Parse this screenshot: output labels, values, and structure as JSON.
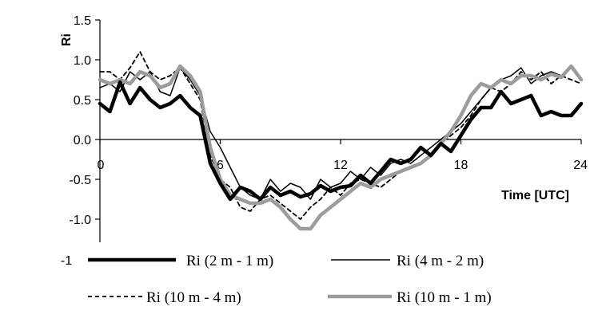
{
  "chart_data": {
    "type": "line",
    "xlabel": "Time [UTC]",
    "ylabel": "Ri",
    "xlim": [
      0,
      24
    ],
    "ylim": [
      -1.25,
      1.5
    ],
    "x_ticks": [
      "0",
      "6",
      "12",
      "18",
      "24"
    ],
    "y_ticks": [
      "1.5",
      "1.0",
      "0.5",
      "0.0",
      "-0.5",
      "-1.0"
    ],
    "stray_label": "-1",
    "grid": false,
    "legend_position": "bottom",
    "series": [
      {
        "name": "Ri (2 m - 1 m)",
        "color": "#000000",
        "style": "thick-solid",
        "x": [
          0,
          0.5,
          1,
          1.5,
          2,
          2.5,
          3,
          3.5,
          4,
          4.5,
          5,
          5.5,
          6,
          6.5,
          7,
          7.5,
          8,
          8.5,
          9,
          9.5,
          10,
          10.5,
          11,
          11.5,
          12,
          12.5,
          13,
          13.5,
          14,
          14.5,
          15,
          15.5,
          16,
          16.5,
          17,
          17.5,
          18,
          18.5,
          19,
          19.5,
          20,
          20.5,
          21,
          21.5,
          22,
          22.5,
          23,
          23.5,
          24
        ],
        "values": [
          0.45,
          0.35,
          0.72,
          0.45,
          0.65,
          0.5,
          0.4,
          0.45,
          0.55,
          0.4,
          0.3,
          -0.3,
          -0.55,
          -0.75,
          -0.6,
          -0.65,
          -0.75,
          -0.6,
          -0.7,
          -0.65,
          -0.72,
          -0.68,
          -0.58,
          -0.65,
          -0.6,
          -0.58,
          -0.45,
          -0.55,
          -0.4,
          -0.25,
          -0.3,
          -0.25,
          -0.1,
          -0.2,
          -0.05,
          -0.15,
          0.05,
          0.25,
          0.4,
          0.4,
          0.6,
          0.45,
          0.5,
          0.55,
          0.3,
          0.35,
          0.3,
          0.3,
          0.45
        ]
      },
      {
        "name": "Ri (4 m - 2 m)",
        "color": "#000000",
        "style": "thin-solid",
        "x": [
          0,
          0.5,
          1,
          1.5,
          2,
          2.5,
          3,
          3.5,
          4,
          4.5,
          5,
          5.5,
          6,
          6.5,
          7,
          7.5,
          8,
          8.5,
          9,
          9.5,
          10,
          10.5,
          11,
          11.5,
          12,
          12.5,
          13,
          13.5,
          14,
          14.5,
          15,
          15.5,
          16,
          16.5,
          17,
          17.5,
          18,
          18.5,
          19,
          19.5,
          20,
          20.5,
          21,
          21.5,
          22,
          22.5,
          23,
          23.5,
          24
        ],
        "values": [
          0.65,
          0.7,
          0.6,
          0.85,
          0.75,
          0.85,
          0.6,
          0.55,
          0.9,
          0.75,
          0.55,
          0.1,
          -0.1,
          -0.35,
          -0.6,
          -0.7,
          -0.75,
          -0.5,
          -0.65,
          -0.55,
          -0.6,
          -0.75,
          -0.5,
          -0.6,
          -0.55,
          -0.4,
          -0.5,
          -0.35,
          -0.45,
          -0.3,
          -0.25,
          -0.3,
          -0.2,
          -0.1,
          0.0,
          0.1,
          0.2,
          0.35,
          0.5,
          0.65,
          0.75,
          0.8,
          0.9,
          0.7,
          0.8,
          0.85,
          0.8,
          0.9,
          0.75
        ]
      },
      {
        "name": "Ri (10 m - 4 m)",
        "color": "#000000",
        "style": "dashed",
        "x": [
          0,
          0.5,
          1,
          1.5,
          2,
          2.5,
          3,
          3.5,
          4,
          4.5,
          5,
          5.5,
          6,
          6.5,
          7,
          7.5,
          8,
          8.5,
          9,
          9.5,
          10,
          10.5,
          11,
          11.5,
          12,
          12.5,
          13,
          13.5,
          14,
          14.5,
          15,
          15.5,
          16,
          16.5,
          17,
          17.5,
          18,
          18.5,
          19,
          19.5,
          20,
          20.5,
          21,
          21.5,
          22,
          22.5,
          23,
          23.5,
          24
        ],
        "values": [
          0.85,
          0.85,
          0.75,
          0.9,
          1.1,
          0.85,
          0.75,
          0.8,
          0.9,
          0.7,
          0.5,
          -0.2,
          -0.5,
          -0.6,
          -0.85,
          -0.9,
          -0.75,
          -0.7,
          -0.8,
          -0.9,
          -1.0,
          -0.85,
          -0.75,
          -0.6,
          -0.7,
          -0.55,
          -0.5,
          -0.55,
          -0.6,
          -0.5,
          -0.4,
          -0.35,
          -0.3,
          -0.2,
          -0.05,
          0.05,
          0.15,
          0.3,
          0.5,
          0.65,
          0.6,
          0.7,
          0.85,
          0.75,
          0.85,
          0.7,
          0.8,
          0.75,
          0.7
        ]
      },
      {
        "name": "Ri (10 m - 1 m)",
        "color": "#9c9c9c",
        "style": "thick-solid",
        "x": [
          0,
          0.5,
          1,
          1.5,
          2,
          2.5,
          3,
          3.5,
          4,
          4.5,
          5,
          5.5,
          6,
          6.5,
          7,
          7.5,
          8,
          8.5,
          9,
          9.5,
          10,
          10.5,
          11,
          11.5,
          12,
          12.5,
          13,
          13.5,
          14,
          14.5,
          15,
          15.5,
          16,
          16.5,
          17,
          17.5,
          18,
          18.5,
          19,
          19.5,
          20,
          20.5,
          21,
          21.5,
          22,
          22.5,
          23,
          23.5,
          24
        ],
        "values": [
          0.75,
          0.7,
          0.75,
          0.7,
          0.85,
          0.8,
          0.65,
          0.7,
          0.92,
          0.8,
          0.6,
          -0.1,
          -0.5,
          -0.7,
          -0.75,
          -0.8,
          -0.8,
          -0.75,
          -0.85,
          -1.0,
          -1.12,
          -1.12,
          -0.95,
          -0.85,
          -0.75,
          -0.65,
          -0.55,
          -0.6,
          -0.5,
          -0.45,
          -0.4,
          -0.35,
          -0.3,
          -0.2,
          -0.05,
          0.1,
          0.3,
          0.55,
          0.7,
          0.65,
          0.75,
          0.7,
          0.8,
          0.8,
          0.75,
          0.82,
          0.78,
          0.92,
          0.75
        ]
      }
    ]
  }
}
